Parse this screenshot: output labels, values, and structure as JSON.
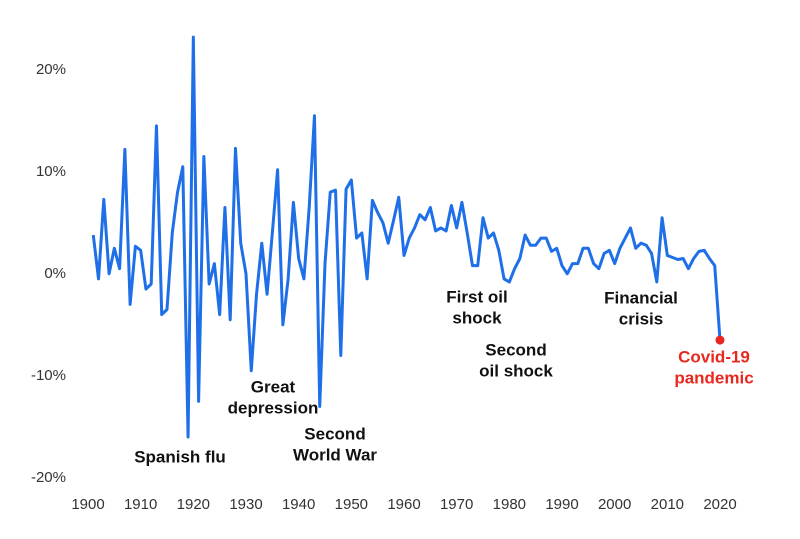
{
  "chart_data": {
    "type": "line",
    "x": [
      1901,
      1902,
      1903,
      1904,
      1905,
      1906,
      1907,
      1908,
      1909,
      1910,
      1911,
      1912,
      1913,
      1914,
      1915,
      1916,
      1917,
      1918,
      1919,
      1920,
      1921,
      1922,
      1923,
      1924,
      1925,
      1926,
      1927,
      1928,
      1929,
      1930,
      1931,
      1932,
      1933,
      1934,
      1935,
      1936,
      1937,
      1938,
      1939,
      1940,
      1941,
      1942,
      1943,
      1944,
      1945,
      1946,
      1947,
      1948,
      1949,
      1950,
      1951,
      1952,
      1953,
      1954,
      1955,
      1956,
      1957,
      1958,
      1959,
      1960,
      1961,
      1962,
      1963,
      1964,
      1965,
      1966,
      1967,
      1968,
      1969,
      1970,
      1971,
      1972,
      1973,
      1974,
      1975,
      1976,
      1977,
      1978,
      1979,
      1980,
      1981,
      1982,
      1983,
      1984,
      1985,
      1986,
      1987,
      1988,
      1989,
      1990,
      1991,
      1992,
      1993,
      1994,
      1995,
      1996,
      1997,
      1998,
      1999,
      2000,
      2001,
      2002,
      2003,
      2004,
      2005,
      2006,
      2007,
      2008,
      2009,
      2010,
      2011,
      2012,
      2013,
      2014,
      2015,
      2016,
      2017,
      2018,
      2019,
      2020
    ],
    "series": [
      {
        "color": "#1f6fe8",
        "marker_color": "#e8281e",
        "values": [
          3.8,
          -0.5,
          7.3,
          0,
          2.5,
          0.5,
          12.2,
          -3,
          2.7,
          2.3,
          -1.5,
          -1,
          14.5,
          -4,
          -3.5,
          4,
          8,
          10.5,
          -16,
          23.2,
          -12.5,
          11.5,
          -1,
          1,
          -4,
          6.5,
          -4.5,
          12.3,
          3,
          0,
          -9.5,
          -2,
          3,
          -2,
          4,
          10.2,
          -5,
          -0.5,
          7,
          1.5,
          -0.5,
          6.5,
          15.5,
          -13,
          1,
          8,
          8.2,
          -8,
          8.3,
          9.2,
          3.5,
          4,
          -0.5,
          7.2,
          6,
          5,
          3,
          5.2,
          7.5,
          1.8,
          3.5,
          4.5,
          5.8,
          5.3,
          6.5,
          4.2,
          4.5,
          4.2,
          6.7,
          4.5,
          7,
          4,
          0.8,
          0.8,
          5.5,
          3.5,
          4,
          2.3,
          -0.5,
          -0.8,
          0.5,
          1.5,
          3.8,
          2.8,
          2.8,
          3.5,
          3.5,
          2.2,
          2.5,
          0.8,
          0,
          1,
          1,
          2.5,
          2.5,
          1,
          0.5,
          2,
          2.3,
          1,
          2.5,
          3.5,
          4.5,
          2.5,
          3,
          2.8,
          2,
          -0.8,
          5.5,
          1.8,
          1.6,
          1.4,
          1.5,
          0.5,
          1.5,
          2.2,
          2.3,
          1.5,
          0.8,
          -6.5
        ]
      }
    ],
    "xlim": [
      1900,
      2020
    ],
    "xticks": [
      1900,
      1910,
      1920,
      1930,
      1940,
      1950,
      1960,
      1970,
      1980,
      1990,
      2000,
      2010,
      2020
    ],
    "ylim": [
      -21,
      24
    ],
    "yticks": [
      {
        "value": -20,
        "label": "-20%"
      },
      {
        "value": -10,
        "label": "-10%"
      },
      {
        "value": 0,
        "label": "0%"
      },
      {
        "value": 10,
        "label": "10%"
      },
      {
        "value": 20,
        "label": "20%"
      }
    ],
    "annotations": [
      {
        "lines": [
          "Spanish flu"
        ],
        "color": "#111111"
      },
      {
        "lines": [
          "Great",
          "depression"
        ],
        "color": "#111111"
      },
      {
        "lines": [
          "Second",
          "World War"
        ],
        "color": "#111111"
      },
      {
        "lines": [
          "First oil",
          "shock"
        ],
        "color": "#111111"
      },
      {
        "lines": [
          "Second",
          "oil shock"
        ],
        "color": "#111111"
      },
      {
        "lines": [
          "Financial",
          "crisis"
        ],
        "color": "#111111"
      },
      {
        "lines": [
          "Covid-19",
          "pandemic"
        ],
        "color": "#e8281e"
      }
    ]
  }
}
